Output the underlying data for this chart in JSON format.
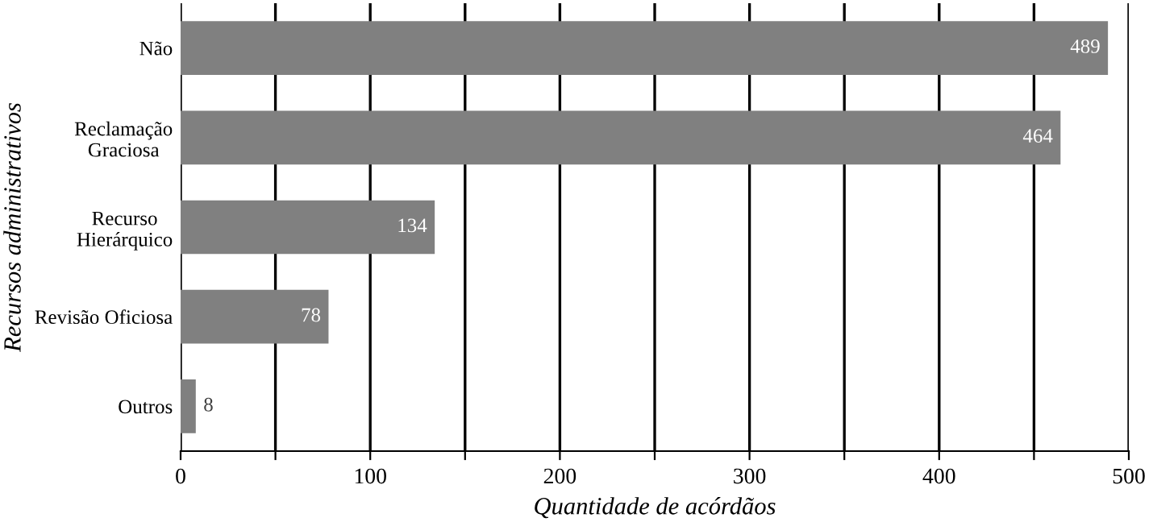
{
  "chart_data": {
    "type": "bar",
    "orientation": "horizontal",
    "categories": [
      "Não",
      "Reclamação\nGraciosa",
      "Recurso\nHierárquico",
      "Revisão Oficiosa",
      "Outros"
    ],
    "values": [
      489,
      464,
      134,
      78,
      8
    ],
    "color": "#808080",
    "xlabel": "Quantidade de acórdãos",
    "ylabel": "Recursos administrativos",
    "xlim": [
      0,
      500
    ],
    "xticks": [
      0,
      {
        "value": 50,
        "label": null
      },
      100,
      {
        "value": 150,
        "label": null
      },
      200,
      {
        "value": 250,
        "label": null
      },
      300,
      {
        "value": 350,
        "label": null
      },
      400,
      {
        "value": 450,
        "label": null
      },
      500
    ],
    "grid": "x",
    "data_labels": true
  }
}
